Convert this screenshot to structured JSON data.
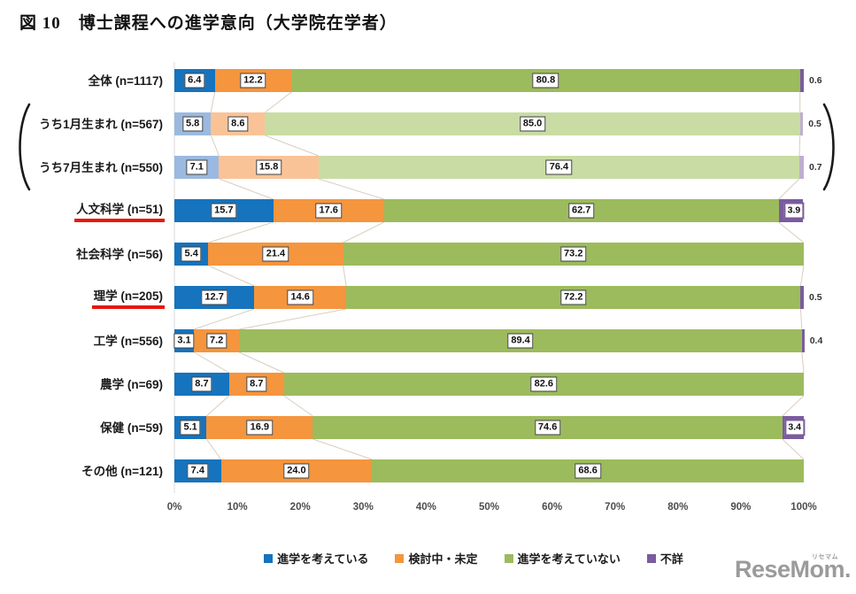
{
  "title": "図 10　博士課程への進学意向（大学院在学者）",
  "watermark": {
    "text": "ReseMom.",
    "ruby": "リセマム"
  },
  "chart_data": {
    "type": "bar",
    "stacked": true,
    "orientation": "horizontal",
    "title": "図 10　博士課程への進学意向（大学院在学者）",
    "xlim": [
      0,
      100
    ],
    "x_ticks": [
      "0%",
      "10%",
      "20%",
      "30%",
      "40%",
      "50%",
      "60%",
      "70%",
      "80%",
      "90%",
      "100%"
    ],
    "legend_position": "bottom",
    "series": [
      {
        "key": "considering",
        "name": "進学を考えている",
        "color": "#1673BD",
        "muted_color": "#9BB9E0"
      },
      {
        "key": "undecided",
        "name": "検討中・未定",
        "color": "#F5953D",
        "muted_color": "#FAC397"
      },
      {
        "key": "not-considering",
        "name": "進学を考えていない",
        "color": "#9CBB5D",
        "muted_color": "#C9DCA4"
      },
      {
        "key": "unknown",
        "name": "不詳",
        "color": "#7A5C9E",
        "muted_color": "#BFAED1"
      }
    ],
    "categories": [
      {
        "label": "全体 (n=1117)",
        "values": [
          6.4,
          12.2,
          80.8,
          0.6
        ],
        "muted": false,
        "red_underline": false,
        "last_value_label": "outside"
      },
      {
        "label": "うち1月生まれ (n=567)",
        "values": [
          5.8,
          8.6,
          85.0,
          0.5
        ],
        "muted": true,
        "red_underline": false,
        "last_value_label": "outside"
      },
      {
        "label": "うち7月生まれ (n=550)",
        "values": [
          7.1,
          15.8,
          76.4,
          0.7
        ],
        "muted": true,
        "red_underline": false,
        "last_value_label": "outside"
      },
      {
        "label": "人文科学 (n=51)",
        "values": [
          15.7,
          17.6,
          62.7,
          3.9
        ],
        "muted": false,
        "red_underline": true,
        "last_value_label": "boxed"
      },
      {
        "label": "社会科学 (n=56)",
        "values": [
          5.4,
          21.4,
          73.2,
          0.0
        ],
        "muted": false,
        "red_underline": false,
        "last_value_label": "none"
      },
      {
        "label": "理学 (n=205)",
        "values": [
          12.7,
          14.6,
          72.2,
          0.5
        ],
        "muted": false,
        "red_underline": true,
        "last_value_label": "outside"
      },
      {
        "label": "工学 (n=556)",
        "values": [
          3.1,
          7.2,
          89.4,
          0.4
        ],
        "muted": false,
        "red_underline": false,
        "last_value_label": "outside"
      },
      {
        "label": "農学 (n=69)",
        "values": [
          8.7,
          8.7,
          82.6,
          0.0
        ],
        "muted": false,
        "red_underline": false,
        "last_value_label": "none"
      },
      {
        "label": "保健 (n=59)",
        "values": [
          5.1,
          16.9,
          74.6,
          3.4
        ],
        "muted": false,
        "red_underline": false,
        "last_value_label": "boxed"
      },
      {
        "label": "その他 (n=121)",
        "values": [
          7.4,
          24.0,
          68.6,
          0.0
        ],
        "muted": false,
        "red_underline": false,
        "last_value_label": "none"
      }
    ],
    "bracket_note_rows": [
      1,
      2
    ],
    "styles": {
      "connector_line": "#D8CEBE",
      "axis_line": "#D9D9D9",
      "value_box_border": "#3F3F3F",
      "underline_red": "#E8170B",
      "bracket": "#1A1A1A"
    }
  }
}
